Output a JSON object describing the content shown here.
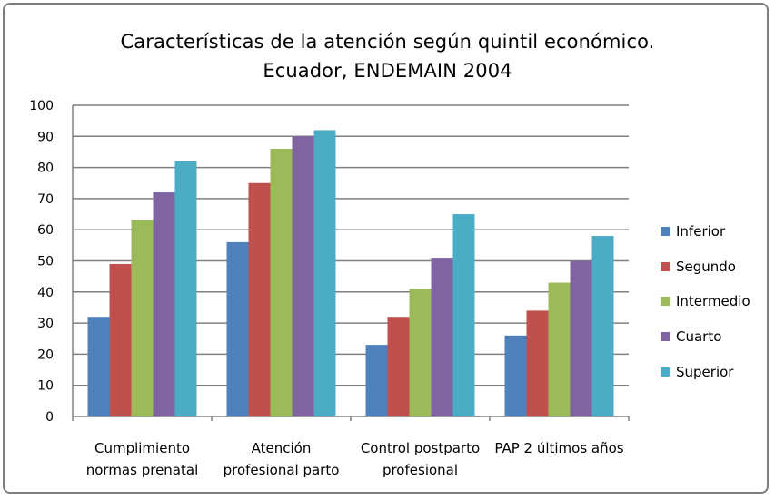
{
  "chart_data": {
    "type": "bar",
    "title_lines": [
      "Características de la atención según quintil económico.",
      "Ecuador, ENDEMAIN 2004"
    ],
    "categories": [
      [
        "Cumplimiento",
        "normas prenatal"
      ],
      [
        "Atención",
        "profesional parto"
      ],
      [
        "Control postparto",
        "profesional"
      ],
      [
        "PAP 2 últimos años"
      ]
    ],
    "series": [
      {
        "name": "Inferior",
        "color": "#4f81bd",
        "values": [
          32,
          56,
          23,
          26
        ]
      },
      {
        "name": "Segundo",
        "color": "#c0504d",
        "values": [
          49,
          75,
          32,
          34
        ]
      },
      {
        "name": "Intermedio",
        "color": "#9bbb59",
        "values": [
          63,
          86,
          41,
          43
        ]
      },
      {
        "name": "Cuarto",
        "color": "#8064a2",
        "values": [
          72,
          90,
          51,
          50
        ]
      },
      {
        "name": "Superior",
        "color": "#4bacc6",
        "values": [
          82,
          92,
          65,
          58
        ]
      }
    ],
    "ylim": [
      0,
      100
    ],
    "yticks": [
      "0",
      "10",
      "20",
      "30",
      "40",
      "50",
      "60",
      "70",
      "80",
      "90",
      "100"
    ],
    "grid": true,
    "legend_position": "right",
    "xlabel": "",
    "ylabel": ""
  }
}
